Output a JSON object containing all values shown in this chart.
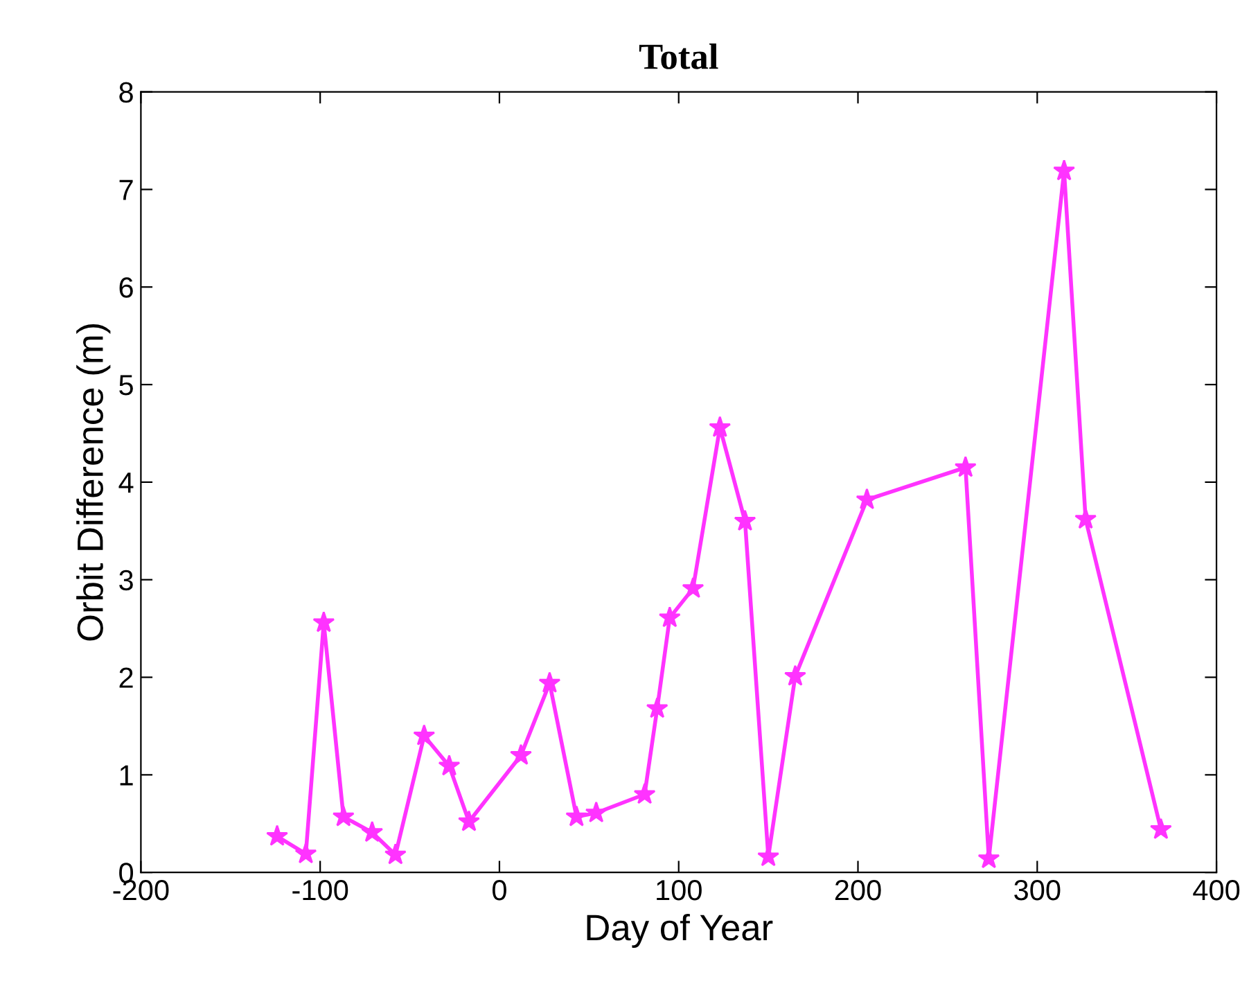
{
  "chart_data": {
    "type": "line",
    "title": "Total",
    "xlabel": "Day of Year",
    "ylabel": "Orbit Difference (m)",
    "x": [
      -124,
      -108,
      -98,
      -87,
      -71,
      -58,
      -42,
      -28,
      -17,
      12,
      28,
      43,
      54,
      81,
      88,
      95,
      108,
      123,
      137,
      150,
      165,
      205,
      260,
      273,
      315,
      327,
      369
    ],
    "series": [
      {
        "color": "#ff33ff",
        "values": [
          0.37,
          0.19,
          2.56,
          0.57,
          0.41,
          0.18,
          1.4,
          1.09,
          0.52,
          1.2,
          1.94,
          0.57,
          0.61,
          0.8,
          1.68,
          2.61,
          2.91,
          4.56,
          3.6,
          0.16,
          2.01,
          3.82,
          4.15,
          0.14,
          7.19,
          3.62,
          0.44
        ]
      }
    ],
    "xlim": [
      -200,
      400
    ],
    "xticks": [
      -200,
      -100,
      0,
      100,
      200,
      300,
      400
    ],
    "ylim": [
      0,
      8
    ],
    "yticks": [
      0,
      1,
      2,
      3,
      4,
      5,
      6,
      7,
      8
    ],
    "marker": "star",
    "line_style": "solid",
    "grid": false,
    "legend": false
  }
}
